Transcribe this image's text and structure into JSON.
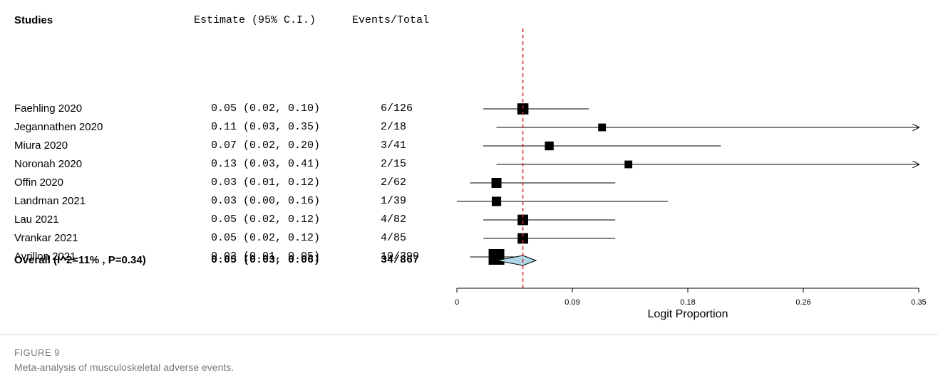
{
  "header": {
    "studies": "Studies",
    "estimate": "Estimate (95% C.I.)",
    "events": "Events/Total"
  },
  "studies": [
    {
      "name": "Faehling 2020",
      "estimate_text": "0.05 (0.02, 0.10)",
      "events": "6/126",
      "est": 0.05,
      "lo": 0.02,
      "hi": 0.1,
      "weight": 0.6
    },
    {
      "name": "Jegannathen 2020",
      "estimate_text": "0.11 (0.03, 0.35)",
      "events": "2/18",
      "est": 0.11,
      "lo": 0.03,
      "hi": 0.35,
      "weight": 0.3,
      "arrow_right": true
    },
    {
      "name": "Miura 2020",
      "estimate_text": "0.07 (0.02, 0.20)",
      "events": "3/41",
      "est": 0.07,
      "lo": 0.02,
      "hi": 0.2,
      "weight": 0.4
    },
    {
      "name": "Noronah 2020",
      "estimate_text": "0.13 (0.03, 0.41)",
      "events": "2/15",
      "est": 0.13,
      "lo": 0.03,
      "hi": 0.41,
      "weight": 0.3,
      "arrow_right": true
    },
    {
      "name": "Offin 2020",
      "estimate_text": "0.03 (0.01, 0.12)",
      "events": "2/62",
      "est": 0.03,
      "lo": 0.01,
      "hi": 0.12,
      "weight": 0.5
    },
    {
      "name": "Landman 2021",
      "estimate_text": "0.03 (0.00, 0.16)",
      "events": "1/39",
      "est": 0.03,
      "lo": 0.0,
      "hi": 0.16,
      "weight": 0.45
    },
    {
      "name": "Lau 2021",
      "estimate_text": "0.05 (0.02, 0.12)",
      "events": "4/82",
      "est": 0.05,
      "lo": 0.02,
      "hi": 0.12,
      "weight": 0.55
    },
    {
      "name": "Vrankar 2021",
      "estimate_text": "0.05 (0.02, 0.12)",
      "events": "4/85",
      "est": 0.05,
      "lo": 0.02,
      "hi": 0.12,
      "weight": 0.55
    },
    {
      "name": "Avrillon 2021",
      "estimate_text": "0.03 (0.01, 0.05)",
      "events": "10/399",
      "est": 0.03,
      "lo": 0.01,
      "hi": 0.05,
      "weight": 1.0
    }
  ],
  "overall": {
    "name": "Overall (I^2=11% , P=0.34)",
    "estimate_text": "0.05 (0.03, 0.06)",
    "events": "34/867",
    "est": 0.05,
    "lo": 0.03,
    "hi": 0.06
  },
  "chart_data": {
    "type": "forest",
    "xlabel": "Logit Proportion",
    "xticks": [
      "0",
      "0.09",
      "0.18",
      "0.26",
      "0.35"
    ],
    "xlim": [
      0,
      0.35
    ],
    "reference_line": 0.05,
    "reference_line_color": "#e02020",
    "diamond_color": "#add8e6"
  },
  "figure": {
    "label": "FIGURE 9",
    "caption": "Meta-analysis of musculoskeletal adverse events."
  }
}
